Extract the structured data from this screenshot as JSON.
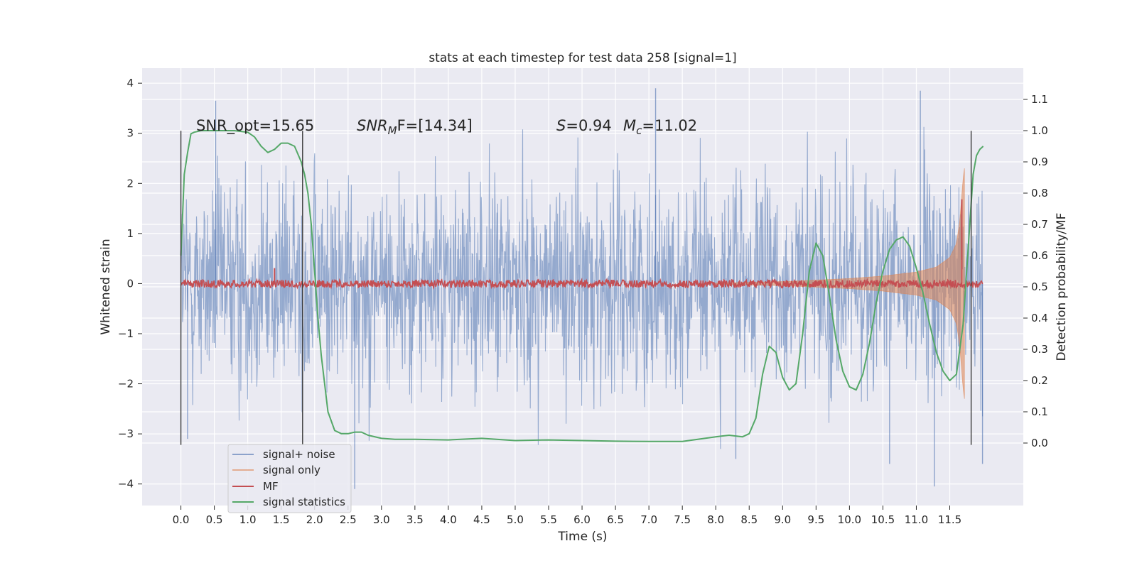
{
  "chart_data": {
    "type": "line",
    "title": "stats at each timestep for test data 258 [signal=1]",
    "xlabel": "Time (s)",
    "ylabel_left": "Whitened strain",
    "ylabel_right": "Detection probability/MF",
    "xlim": [
      -0.58,
      12.6
    ],
    "ylim_left": [
      -4.43,
      4.3
    ],
    "ylim_right": [
      -0.2,
      1.2
    ],
    "x_ticks": [
      "0.0",
      "0.5",
      "1.0",
      "1.5",
      "2.0",
      "2.5",
      "3.0",
      "3.5",
      "4.0",
      "4.5",
      "5.0",
      "5.5",
      "6.0",
      "6.5",
      "7.0",
      "7.5",
      "8.0",
      "8.5",
      "9.0",
      "9.5",
      "10.0",
      "10.5",
      "11.0",
      "11.5"
    ],
    "y_ticks_left": [
      4,
      3,
      2,
      1,
      0,
      -1,
      -2,
      -3,
      -4
    ],
    "y_ticks_left_labels": [
      "4",
      "3",
      "2",
      "1",
      "0",
      "−1",
      "−2",
      "−3",
      "−4"
    ],
    "y_ticks_right": [
      "1.1",
      "1.0",
      "0.9",
      "0.8",
      "0.7",
      "0.6",
      "0.5",
      "0.4",
      "0.3",
      "0.2",
      "0.1",
      "0.0"
    ],
    "grid": true,
    "legend_position": "lower-left",
    "annotations": {
      "snr_opt": "SNR_opt=15.65",
      "snr_mf_base": "SNR",
      "snr_mf_sub": "M",
      "snr_mf_rest": "F=[14.34]",
      "s_label": "S",
      "s_value": "=0.94",
      "mc_base": "M",
      "mc_sub": "c",
      "mc_value": "=11.02"
    },
    "vlines_x": [
      0.0,
      1.82,
      11.82
    ],
    "series": [
      {
        "name": "signal+ noise",
        "color": "#4c72b0",
        "axis": "left",
        "kind": "noise",
        "x_range": [
          0.0,
          11.99
        ],
        "typical_range": [
          -2.0,
          2.0
        ],
        "extremes": [
          {
            "x": 0.52,
            "y": 3.65
          },
          {
            "x": 7.1,
            "y": 3.9
          },
          {
            "x": 11.06,
            "y": 3.85
          },
          {
            "x": 2.6,
            "y": -4.1
          },
          {
            "x": 11.27,
            "y": -4.05
          },
          {
            "x": 8.3,
            "y": -3.5
          },
          {
            "x": 10.6,
            "y": -3.6
          },
          {
            "x": 11.99,
            "y": -3.6
          },
          {
            "x": 0.1,
            "y": -3.1
          }
        ]
      },
      {
        "name": "signal only",
        "color": "#dd8452",
        "axis": "left",
        "kind": "chirp",
        "x": [
          8.0,
          9.0,
          9.5,
          10.0,
          10.5,
          11.0,
          11.3,
          11.5,
          11.6,
          11.65,
          11.7,
          11.72
        ],
        "amplitude": [
          0.01,
          0.04,
          0.07,
          0.1,
          0.15,
          0.23,
          0.33,
          0.52,
          0.8,
          1.25,
          2.1,
          2.3
        ]
      },
      {
        "name": "MF",
        "color": "#c44e52",
        "axis": "right",
        "kind": "noisy-flat",
        "level": 0.51,
        "x_range": [
          0.0,
          11.99
        ],
        "spikes": [
          {
            "x": 1.4,
            "y": 0.56
          },
          {
            "x": 11.68,
            "y": 0.78
          }
        ]
      },
      {
        "name": "signal statistics",
        "color": "#55a868",
        "axis": "right",
        "kind": "line",
        "x": [
          0.0,
          0.05,
          0.1,
          0.15,
          0.2,
          0.3,
          0.4,
          0.6,
          0.8,
          1.0,
          1.1,
          1.2,
          1.3,
          1.4,
          1.5,
          1.6,
          1.7,
          1.8,
          1.85,
          1.9,
          1.95,
          2.0,
          2.05,
          2.1,
          2.2,
          2.3,
          2.4,
          2.5,
          2.6,
          2.7,
          2.8,
          3.0,
          3.2,
          3.5,
          4.0,
          4.5,
          5.0,
          5.5,
          6.0,
          6.5,
          7.0,
          7.5,
          8.0,
          8.2,
          8.4,
          8.5,
          8.6,
          8.7,
          8.8,
          8.9,
          9.0,
          9.1,
          9.2,
          9.3,
          9.4,
          9.5,
          9.6,
          9.7,
          9.8,
          9.9,
          10.0,
          10.1,
          10.2,
          10.3,
          10.4,
          10.5,
          10.6,
          10.7,
          10.8,
          10.9,
          11.0,
          11.1,
          11.2,
          11.3,
          11.4,
          11.5,
          11.6,
          11.7,
          11.8,
          11.85,
          11.9,
          11.95,
          12.0
        ],
        "y": [
          0.6,
          0.86,
          0.93,
          0.99,
          0.995,
          1.0,
          1.0,
          1.0,
          1.0,
          0.995,
          0.98,
          0.95,
          0.93,
          0.94,
          0.96,
          0.96,
          0.95,
          0.9,
          0.86,
          0.8,
          0.7,
          0.55,
          0.4,
          0.28,
          0.1,
          0.04,
          0.03,
          0.03,
          0.035,
          0.035,
          0.025,
          0.015,
          0.012,
          0.012,
          0.01,
          0.015,
          0.008,
          0.01,
          0.008,
          0.006,
          0.005,
          0.005,
          0.02,
          0.025,
          0.02,
          0.03,
          0.08,
          0.22,
          0.31,
          0.29,
          0.21,
          0.17,
          0.19,
          0.35,
          0.55,
          0.64,
          0.6,
          0.47,
          0.33,
          0.23,
          0.18,
          0.17,
          0.22,
          0.32,
          0.45,
          0.55,
          0.62,
          0.65,
          0.66,
          0.63,
          0.56,
          0.48,
          0.38,
          0.29,
          0.23,
          0.2,
          0.22,
          0.38,
          0.7,
          0.86,
          0.92,
          0.94,
          0.95
        ]
      }
    ]
  }
}
